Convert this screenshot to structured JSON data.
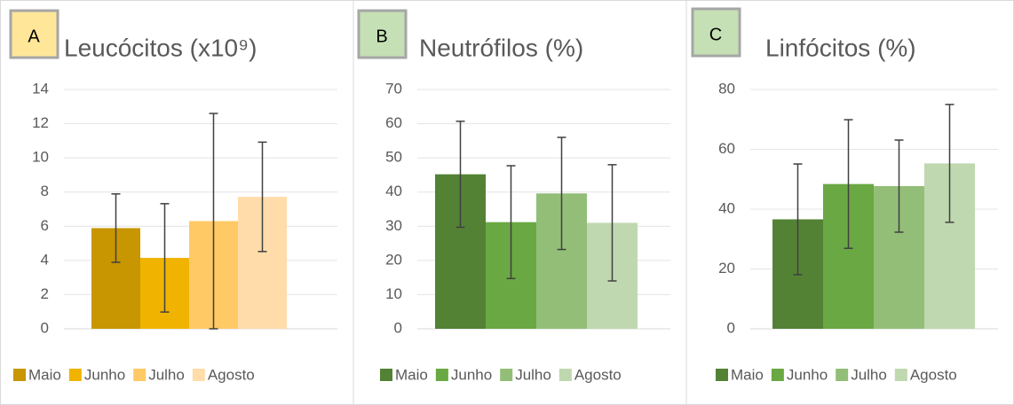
{
  "chart_data": [
    {
      "type": "bar",
      "label": "A",
      "title": "Leucócitos (x10⁹)",
      "ylim": [
        0,
        14
      ],
      "yticks": [
        0,
        2,
        4,
        6,
        8,
        10,
        12,
        14
      ],
      "grid": true,
      "series": [
        {
          "name": "Maio",
          "color": "#c89600",
          "values": [
            5.89
          ],
          "errors": [
            2.0
          ]
        },
        {
          "name": "Junho",
          "color": "#f0b400",
          "values": [
            4.15
          ],
          "errors": [
            3.17
          ]
        },
        {
          "name": "Julho",
          "color": "#ffc966",
          "values": [
            6.3
          ],
          "errors": [
            6.3
          ]
        },
        {
          "name": "Agosto",
          "color": "#ffdcaa",
          "values": [
            7.72
          ],
          "errors": [
            3.2
          ]
        }
      ]
    },
    {
      "type": "bar",
      "label": "B",
      "title": "Neutrófilos (%)",
      "ylim": [
        0,
        70
      ],
      "yticks": [
        0,
        10,
        20,
        30,
        40,
        50,
        60,
        70
      ],
      "grid": true,
      "series": [
        {
          "name": "Maio",
          "color": "#548235",
          "values": [
            45.2
          ],
          "errors": [
            15.5
          ]
        },
        {
          "name": "Junho",
          "color": "#6aa843",
          "values": [
            31.2
          ],
          "errors": [
            16.5
          ]
        },
        {
          "name": "Julho",
          "color": "#93be78",
          "values": [
            39.6
          ],
          "errors": [
            16.4
          ]
        },
        {
          "name": "Agosto",
          "color": "#c0d8b0",
          "values": [
            31
          ],
          "errors": [
            17
          ]
        }
      ]
    },
    {
      "type": "bar",
      "label": "C",
      "title": "Linfócitos (%)",
      "ylim": [
        0,
        80
      ],
      "yticks": [
        0,
        20,
        40,
        60,
        80
      ],
      "grid": true,
      "series": [
        {
          "name": "Maio",
          "color": "#548235",
          "values": [
            36.6
          ],
          "errors": [
            18.5
          ]
        },
        {
          "name": "Junho",
          "color": "#6aa843",
          "values": [
            48.4
          ],
          "errors": [
            21.5
          ]
        },
        {
          "name": "Julho",
          "color": "#93be78",
          "values": [
            47.7
          ],
          "errors": [
            15.4
          ]
        },
        {
          "name": "Agosto",
          "color": "#c0d8b0",
          "values": [
            55.3
          ],
          "errors": [
            19.7
          ]
        }
      ]
    }
  ]
}
